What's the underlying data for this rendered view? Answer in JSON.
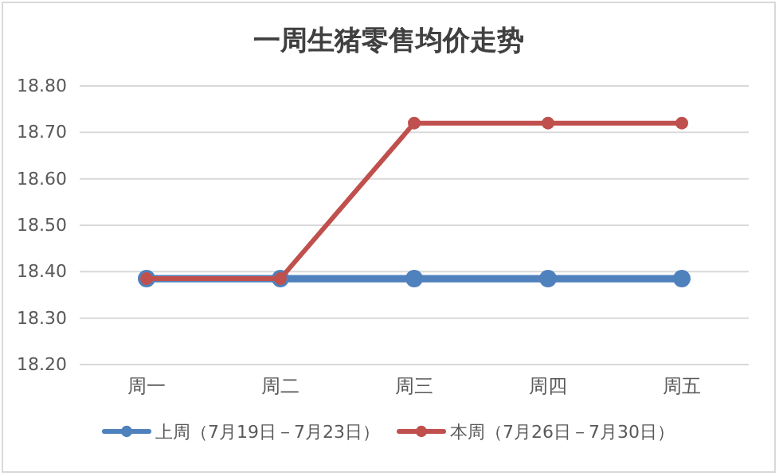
{
  "chart_data": {
    "type": "line",
    "title": "一周生猪零售均价走势",
    "categories": [
      "周一",
      "周二",
      "周三",
      "周四",
      "周五"
    ],
    "series": [
      {
        "name": "上周（7月19日－7月23日）",
        "color": "#4f81bd",
        "values": [
          18.385,
          18.385,
          18.385,
          18.385,
          18.385
        ]
      },
      {
        "name": "本周（7月26日－7月30日）",
        "color": "#c0504d",
        "values": [
          18.385,
          18.385,
          18.72,
          18.72,
          18.72
        ]
      }
    ],
    "ylim": [
      18.2,
      18.8
    ],
    "yticks": [
      {
        "value": 18.2,
        "label": "18.20"
      },
      {
        "value": 18.3,
        "label": "18.30"
      },
      {
        "value": 18.4,
        "label": "18.40"
      },
      {
        "value": 18.5,
        "label": "18.50"
      },
      {
        "value": 18.6,
        "label": "18.60"
      },
      {
        "value": 18.7,
        "label": "18.70"
      },
      {
        "value": 18.8,
        "label": "18.80"
      }
    ],
    "grid": "y",
    "legend": "bottom",
    "marker": "circle",
    "line_style": "solid"
  }
}
